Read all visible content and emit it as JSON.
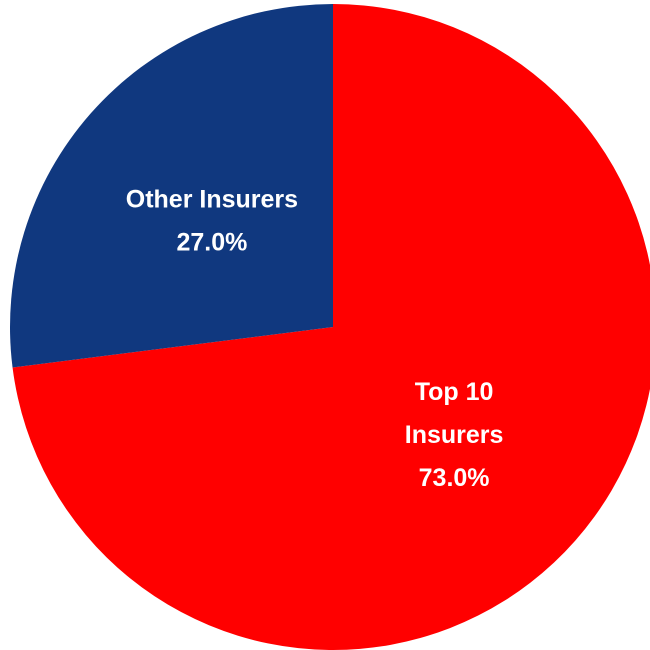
{
  "chart_data": {
    "type": "pie",
    "title": "",
    "start_angle_deg": 0,
    "direction": "clockwise",
    "slices": [
      {
        "label_lines": [
          "Top 10",
          "Insurers"
        ],
        "value": 73.0,
        "value_label": "73.0%",
        "color": "#ff0000"
      },
      {
        "label_lines": [
          "Other Insurers"
        ],
        "value": 27.0,
        "value_label": "27.0%",
        "color": "#10387f"
      }
    ],
    "legend": "none"
  }
}
